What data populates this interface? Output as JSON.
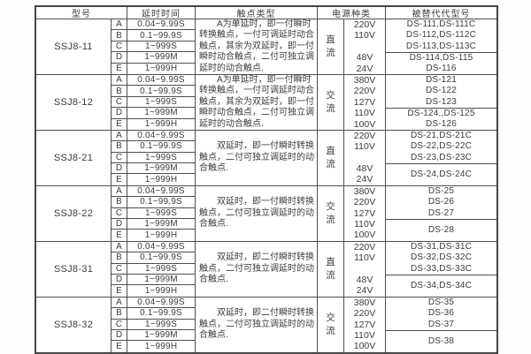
{
  "table": {
    "colors": {
      "border": "#4e4e4e",
      "text": "#3c3c3c",
      "background": "#ffffff"
    },
    "columns": {
      "model": "型号",
      "delay": "延时时间",
      "contact": "触点类型",
      "power": "电源种类",
      "replaced": "被替代代型号"
    },
    "row_letters": [
      "A",
      "B",
      "C",
      "D",
      "E"
    ],
    "delay_values": [
      "0.04~9.99S",
      "0.1~99.9S",
      "1~999S",
      "1~999M",
      "1~999H"
    ],
    "groups": [
      {
        "model": "SSJ8-11",
        "contact_type": "　　A为单延时，即一付瞬时\n转换触点，一付可调延时动合\n触点，其余为双延时，即一付\n瞬时动合触点，二付可独立调\n延时的动合触点.",
        "power_type": "直流",
        "voltages": [
          "220V",
          "110V",
          "",
          "48V",
          "24V"
        ],
        "replaced_top": [
          "DS-111,DS-111C",
          "DS-112,DS-112C",
          "DS-113,DS-113C"
        ],
        "replaced_bottom": [
          "DS-114,DS-115",
          "DS-116"
        ]
      },
      {
        "model": "SSJ8-12",
        "contact_type": "　　A为单延时，即一付瞬时\n转换触点，一付可调延时动合\n触点，其余为双延时，即一付\n瞬时动合触点，二付可独立调\n延时的动合触点.",
        "power_type": "交流",
        "voltages": [
          "380V",
          "220V",
          "127V",
          "110V",
          "100V"
        ],
        "replaced_top": [
          "DS-121",
          "DS-122",
          "DS-123"
        ],
        "replaced_bottom": [
          "DS-124,,DS-125",
          "DS-126"
        ]
      },
      {
        "model": "SSJ8-21",
        "contact_type": "　　双延时，即一付瞬时转换\n触点，二付可独立调延时的动\n合触点.",
        "power_type": "直流",
        "voltages": [
          "220V",
          "110V",
          "",
          "48V",
          "24V"
        ],
        "replaced_top": [
          "DS-21,DS-21C",
          "DS-22,DS-22C",
          "DS-23,DS-23C"
        ],
        "replaced_bottom": [
          "DS-24,DS-24C"
        ]
      },
      {
        "model": "SSJ8-22",
        "contact_type": "　　双延时，即一付瞬时转换\n触点，二付可独立调延时的动\n合触点.",
        "power_type": "交流",
        "voltages": [
          "380V",
          "220V",
          "127V",
          "110V",
          "100V"
        ],
        "replaced_top": [
          "DS-25",
          "DS-26",
          "DS-27"
        ],
        "replaced_bottom": [
          "DS-28"
        ]
      },
      {
        "model": "SSJ8-31",
        "contact_type": "　　双延时，即二付瞬时转换\n触点，二付可独立调延时的动\n合触点.",
        "power_type": "直流",
        "voltages": [
          "220V",
          "110V",
          "",
          "48V",
          "24V"
        ],
        "replaced_top": [
          "DS-31,DS-31C",
          "DS-32,DS-32C",
          "DS-33,DS-33C"
        ],
        "replaced_bottom": [
          "DS-34,DS-34C"
        ]
      },
      {
        "model": "SSJ8-32",
        "contact_type": "　　双延时，即二付瞬时转换\n触点，二付可独立调延时的动\n合触点.",
        "power_type": "交流",
        "voltages": [
          "380V",
          "220V",
          "127V",
          "110V",
          "100V"
        ],
        "replaced_top": [
          "DS-35",
          "DS-36",
          "DS-37"
        ],
        "replaced_bottom": [
          "DS-38"
        ]
      }
    ]
  }
}
